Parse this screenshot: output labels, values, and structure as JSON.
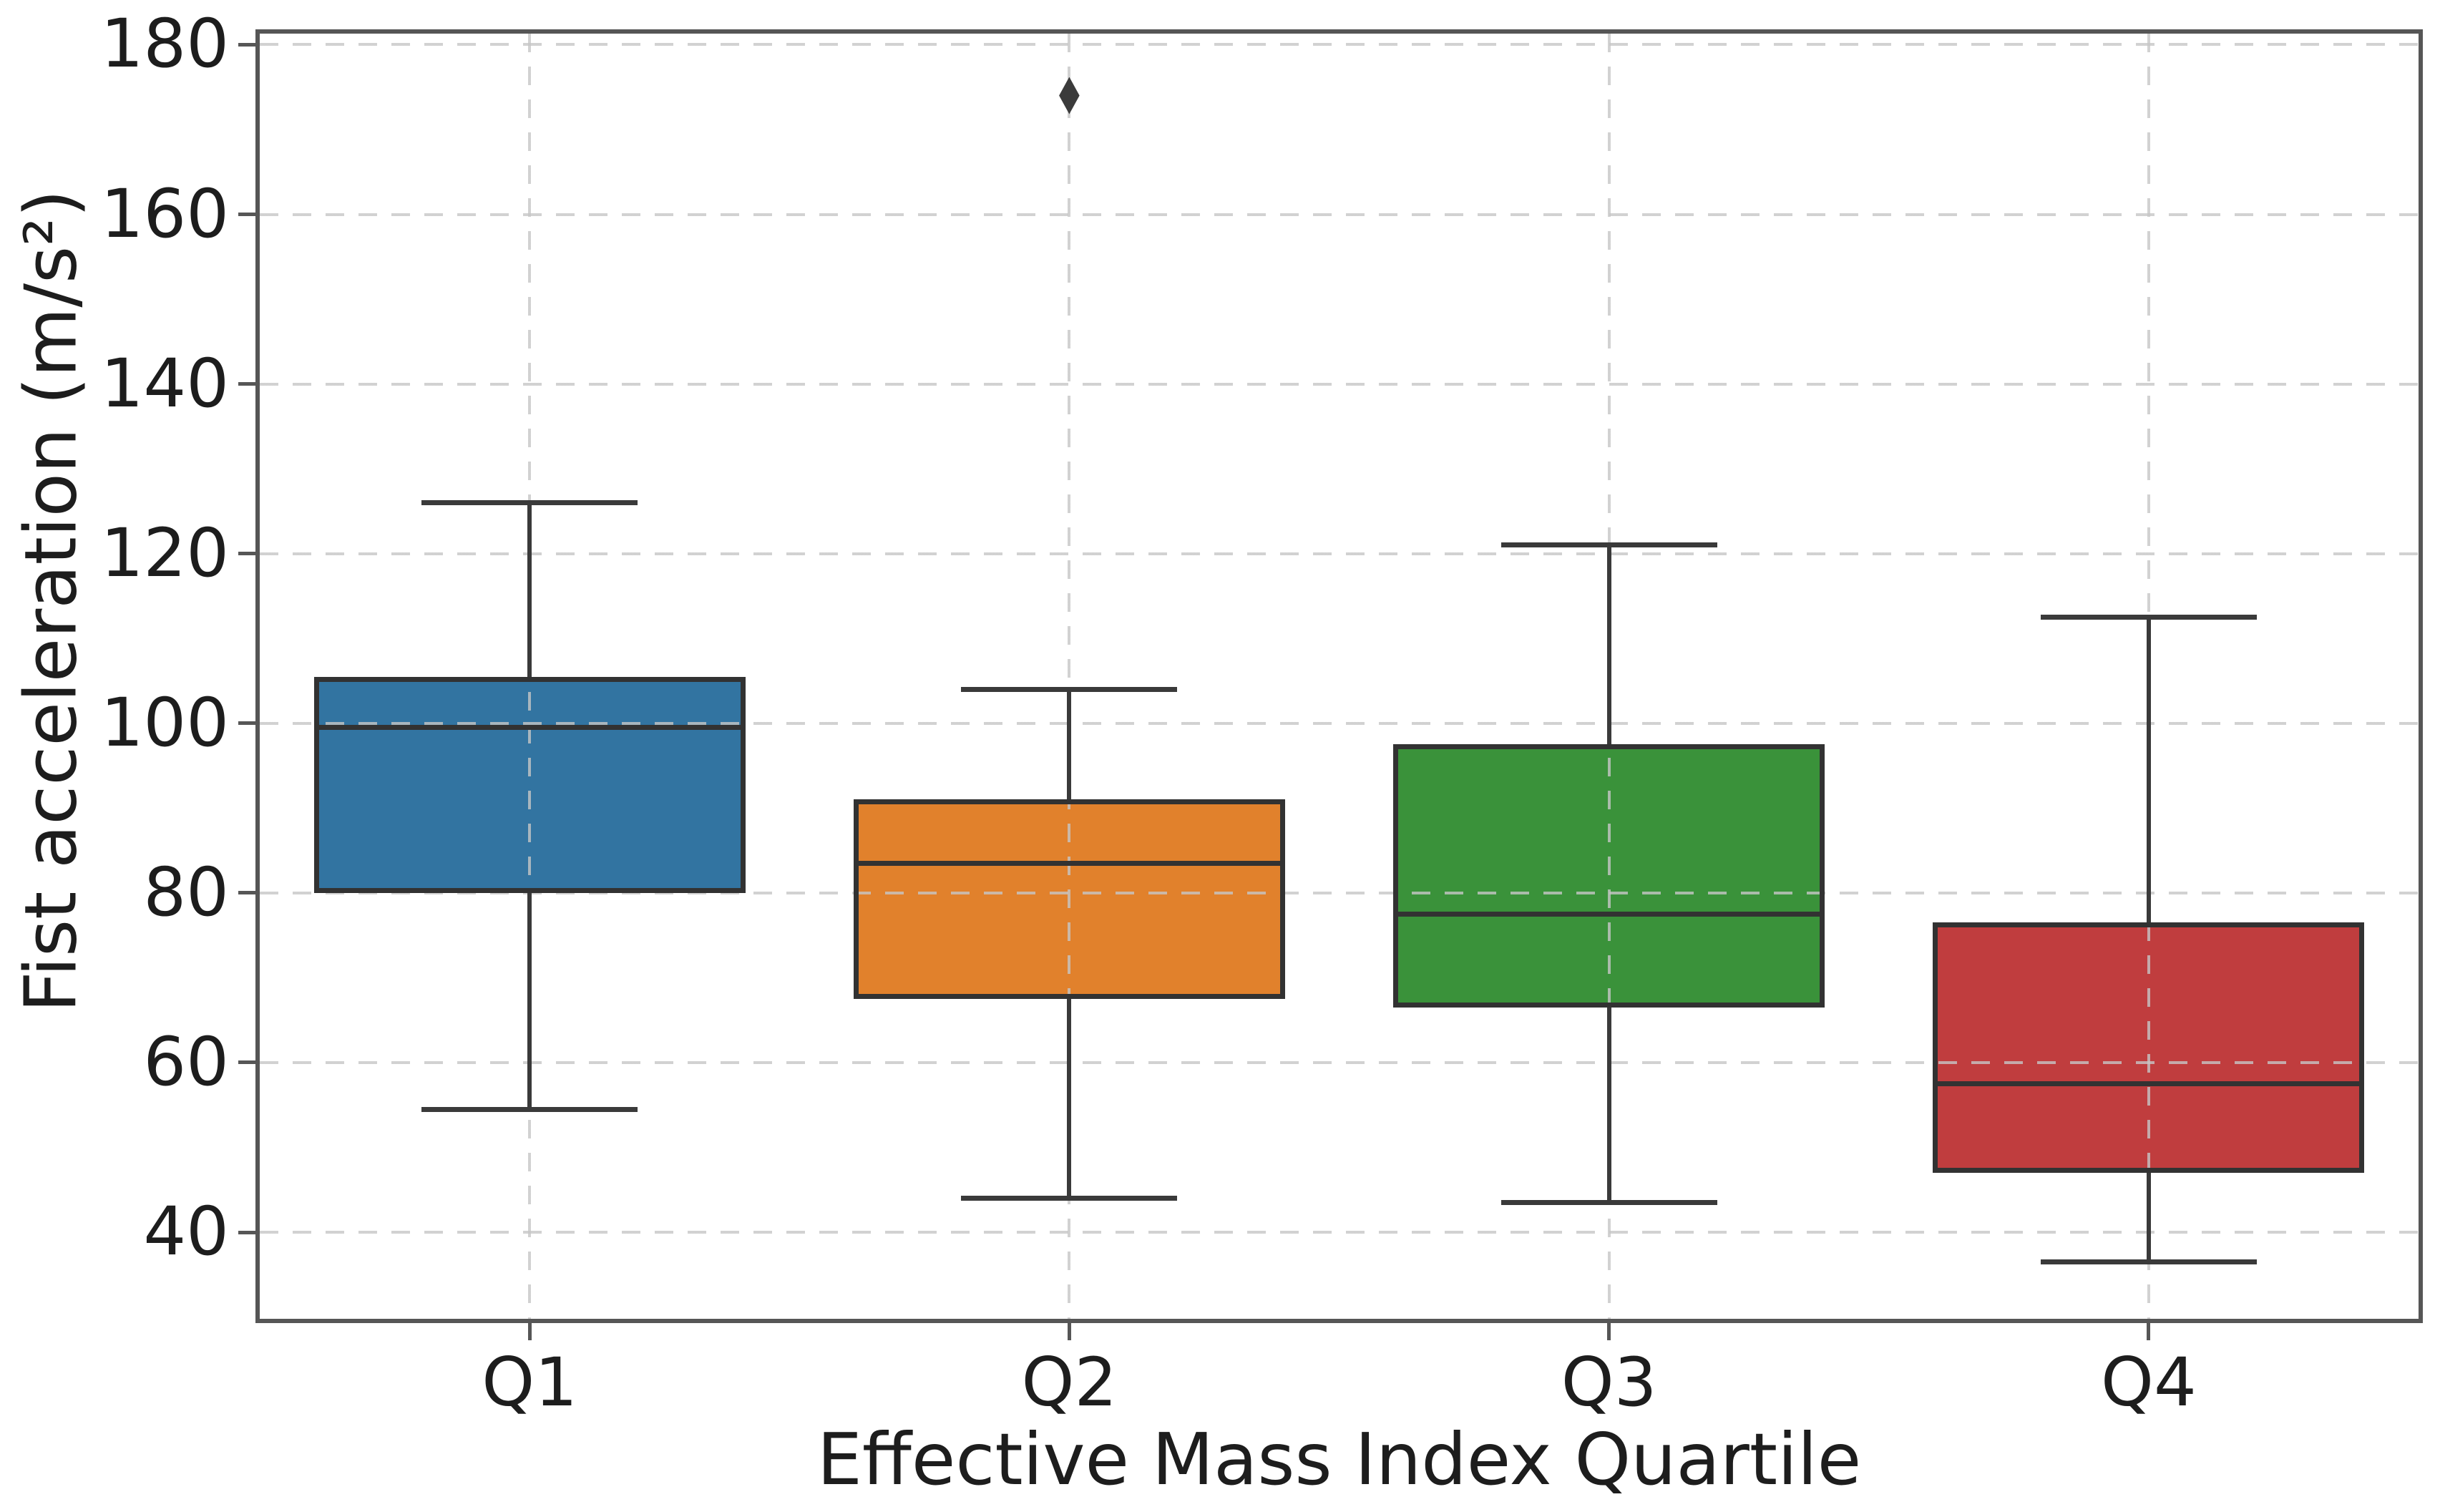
{
  "figure": {
    "background": "#ffffff",
    "text_color": "#1d1d1d"
  },
  "chart_data": {
    "type": "box",
    "title": "",
    "xlabel": "Effective Mass Index Quartile",
    "ylabel": "Fist acceleration (m/s²)",
    "categories": [
      "Q1",
      "Q2",
      "Q3",
      "Q4"
    ],
    "yticks": [
      40,
      60,
      80,
      100,
      120,
      140,
      160,
      180
    ],
    "ylim": [
      29.8,
      181.3
    ],
    "grid": "both-axes-dashed-light-gray",
    "legend": "none",
    "boxes": [
      {
        "category": "Q1",
        "whisker_low": 54.5,
        "q1": 80,
        "median": 99.5,
        "q3": 105.5,
        "whisker_high": 126,
        "outliers": [],
        "fill_color": "#3274a1"
      },
      {
        "category": "Q2",
        "whisker_low": 44,
        "q1": 67.5,
        "median": 83.5,
        "q3": 91,
        "whisker_high": 104,
        "outliers": [
          174
        ],
        "fill_color": "#e1812c"
      },
      {
        "category": "Q3",
        "whisker_low": 43.5,
        "q1": 66.5,
        "median": 77.5,
        "q3": 97.5,
        "whisker_high": 121,
        "outliers": [],
        "fill_color": "#3a923a"
      },
      {
        "category": "Q4",
        "whisker_low": 36.5,
        "q1": 47,
        "median": 57.5,
        "q3": 76.5,
        "whisker_high": 112.5,
        "outliers": [],
        "fill_color": "#c03d3e"
      }
    ],
    "style_colors": {
      "box_edge": "#323232",
      "whisker": "#3a3a3a",
      "outlier_marker": "#3b3b3b",
      "spine": "#565656",
      "gridline": "#c6c6c6"
    }
  }
}
